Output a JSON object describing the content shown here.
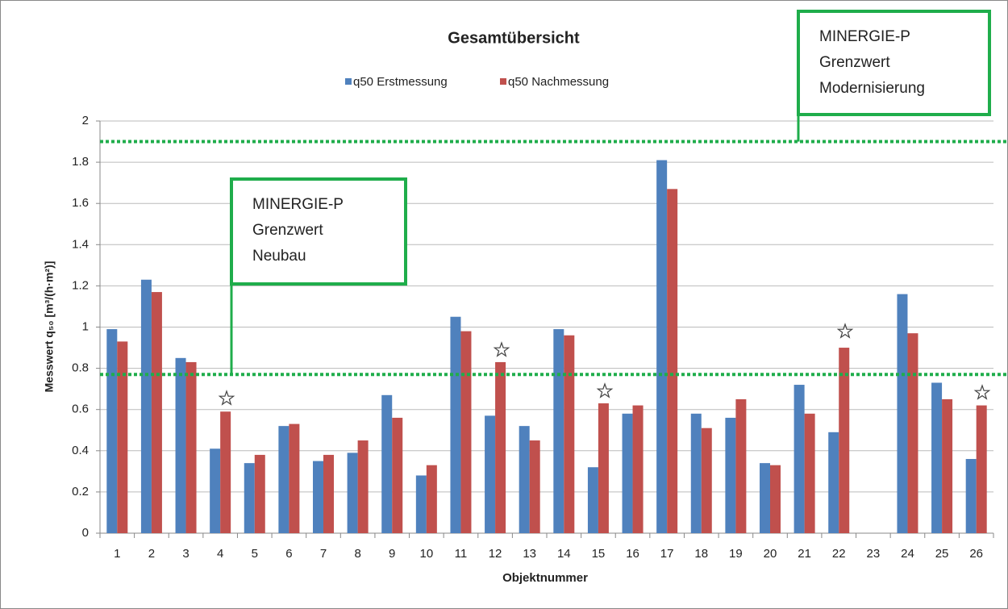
{
  "chart_data": {
    "type": "bar",
    "title": "Gesamtübersicht",
    "x_label": "Objektnummer",
    "y_label": "Messwert q₅₀ [m³/(h·m²)]",
    "categories": [
      "1",
      "2",
      "3",
      "4",
      "5",
      "6",
      "7",
      "8",
      "9",
      "10",
      "11",
      "12",
      "13",
      "14",
      "15",
      "16",
      "17",
      "18",
      "19",
      "20",
      "21",
      "22",
      "23",
      "24",
      "25",
      "26"
    ],
    "series": [
      {
        "name": "q50 Erstmessung",
        "color": "#4f81bd",
        "values": [
          0.99,
          1.23,
          0.85,
          0.41,
          0.34,
          0.52,
          0.35,
          0.39,
          0.67,
          0.28,
          1.05,
          0.57,
          0.52,
          0.99,
          0.32,
          0.58,
          1.81,
          0.58,
          0.56,
          0.34,
          0.72,
          0.49,
          null,
          1.16,
          0.73,
          0.36
        ]
      },
      {
        "name": "q50 Nachmessung",
        "color": "#c0504d",
        "values": [
          0.93,
          1.17,
          0.83,
          0.59,
          0.38,
          0.53,
          0.38,
          0.45,
          0.56,
          0.33,
          0.98,
          0.83,
          0.45,
          0.96,
          0.63,
          0.62,
          1.67,
          0.51,
          0.65,
          0.33,
          0.58,
          0.9,
          null,
          0.97,
          0.65,
          0.62
        ]
      }
    ],
    "ylim": [
      0,
      2
    ],
    "yticks": [
      0,
      0.2,
      0.4,
      0.6,
      0.8,
      1,
      1.2,
      1.4,
      1.6,
      1.8,
      2
    ],
    "grid": true,
    "reference_lines": [
      {
        "value": 0.77,
        "color": "#1fad4b",
        "label_lines": [
          "MINERGIE-P",
          "Grenzwert",
          "Neubau"
        ]
      },
      {
        "value": 1.9,
        "color": "#1fad4b",
        "label_lines": [
          "MINERGIE-P",
          "Grenzwert",
          "Modernisierung"
        ]
      }
    ]
  }
}
